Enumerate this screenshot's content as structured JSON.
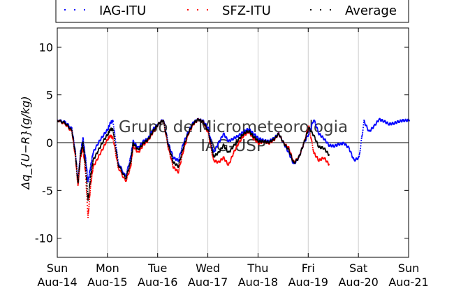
{
  "chart_data": {
    "type": "scatter",
    "ylabel": "Δq_{U−R}(g/kg)",
    "ylim": [
      -12,
      12
    ],
    "yticks": [
      10,
      5,
      0,
      -5,
      -10
    ],
    "xlim": [
      0,
      7
    ],
    "xticks": [
      {
        "day": "Sun",
        "date": "Aug-14",
        "x": 0
      },
      {
        "day": "Mon",
        "date": "Aug-15",
        "x": 1
      },
      {
        "day": "Tue",
        "date": "Aug-16",
        "x": 2
      },
      {
        "day": "Wed",
        "date": "Aug-17",
        "x": 3
      },
      {
        "day": "Thu",
        "date": "Aug-18",
        "x": 4
      },
      {
        "day": "Fri",
        "date": "Aug-19",
        "x": 5
      },
      {
        "day": "Sat",
        "date": "Aug-20",
        "x": 6
      },
      {
        "day": "Sun",
        "date": "Aug-21",
        "x": 7
      }
    ],
    "grid": "vertical",
    "zero_line": true,
    "legend_placement": "top",
    "watermark": [
      "Grupo de Micrometeorologia",
      "IAG-USP"
    ],
    "series": [
      {
        "name": "IAG-ITU",
        "color": "#0000ff",
        "x": [
          0.0,
          0.15,
          0.28,
          0.35,
          0.4,
          0.45,
          0.5,
          0.55,
          0.6,
          0.65,
          0.7,
          0.8,
          0.9,
          1.0,
          1.05,
          1.1,
          1.2,
          1.35,
          1.45,
          1.5,
          1.6,
          1.7,
          1.8,
          1.9,
          2.0,
          2.1,
          2.2,
          2.3,
          2.4,
          2.5,
          2.6,
          2.7,
          2.8,
          2.9,
          3.0,
          3.1,
          3.2,
          3.3,
          3.4,
          3.5,
          3.6,
          3.7,
          3.8,
          3.9,
          4.0,
          4.1,
          4.2,
          4.3,
          4.4,
          4.5,
          4.6,
          4.7,
          4.8,
          4.9,
          5.0,
          5.1,
          5.2,
          5.3,
          5.4,
          5.5,
          5.6,
          5.7,
          5.8,
          5.9,
          6.0,
          6.1,
          6.2,
          6.3,
          6.4,
          6.5,
          6.6,
          6.7,
          6.8,
          6.9,
          7.0
        ],
        "y": [
          2.4,
          2.2,
          1.5,
          -1.0,
          -4.0,
          -1.0,
          0.5,
          -1.5,
          -4.0,
          -2.5,
          -1.0,
          0.0,
          0.8,
          1.5,
          2.2,
          2.3,
          -2.0,
          -3.5,
          -1.5,
          0.2,
          -0.5,
          0.2,
          0.5,
          1.5,
          2.0,
          2.5,
          0.0,
          -1.5,
          -1.8,
          0.0,
          1.2,
          2.2,
          2.5,
          2.3,
          1.5,
          -1.0,
          0.0,
          1.0,
          0.2,
          0.5,
          0.8,
          1.2,
          1.5,
          1.0,
          0.5,
          0.3,
          0.2,
          0.5,
          1.0,
          0.0,
          -1.0,
          -2.2,
          -1.5,
          0.0,
          1.0,
          2.5,
          1.0,
          0.5,
          -0.2,
          -0.3,
          -0.1,
          0.0,
          -0.5,
          -1.8,
          -1.5,
          2.3,
          1.2,
          1.8,
          2.5,
          2.3,
          2.0,
          2.1,
          2.3,
          2.4,
          2.4
        ]
      },
      {
        "name": "SFZ-ITU",
        "color": "#ff0000",
        "x": [
          0.0,
          0.15,
          0.28,
          0.35,
          0.4,
          0.45,
          0.5,
          0.55,
          0.6,
          0.65,
          0.7,
          0.8,
          0.9,
          1.0,
          1.05,
          1.1,
          1.2,
          1.35,
          1.45,
          1.5,
          1.6,
          1.7,
          1.8,
          1.9,
          2.0,
          2.1,
          2.2,
          2.3,
          2.4,
          2.5,
          2.6,
          2.7,
          2.8,
          2.9,
          3.0,
          3.1,
          3.2,
          3.3,
          3.4,
          3.5,
          3.6,
          3.7,
          3.8,
          3.9,
          4.0,
          4.1,
          4.2,
          4.3,
          4.4,
          4.5,
          4.6,
          4.7,
          4.8,
          4.9,
          5.0,
          5.1,
          5.2,
          5.3,
          5.4
        ],
        "y": [
          2.4,
          2.0,
          1.2,
          -1.5,
          -4.5,
          -1.5,
          -0.5,
          -3.0,
          -7.8,
          -4.5,
          -2.5,
          -1.5,
          -0.5,
          0.5,
          0.8,
          0.5,
          -2.5,
          -4.0,
          -2.5,
          -0.3,
          -1.0,
          -0.2,
          0.3,
          1.2,
          2.0,
          2.4,
          -0.5,
          -2.5,
          -3.0,
          -0.8,
          1.0,
          2.0,
          2.5,
          2.2,
          1.0,
          -1.8,
          -2.0,
          -1.5,
          -2.3,
          -1.0,
          0.0,
          0.8,
          1.2,
          0.5,
          0.0,
          0.2,
          0.0,
          0.3,
          1.0,
          0.0,
          -0.5,
          -2.0,
          -1.5,
          0.0,
          1.8,
          -1.0,
          -1.8,
          -1.5,
          -2.2
        ]
      },
      {
        "name": "Average",
        "color": "#000000",
        "x": [
          0.0,
          0.15,
          0.28,
          0.35,
          0.4,
          0.45,
          0.5,
          0.55,
          0.6,
          0.65,
          0.7,
          0.8,
          0.9,
          1.0,
          1.05,
          1.1,
          1.2,
          1.35,
          1.45,
          1.5,
          1.6,
          1.7,
          1.8,
          1.9,
          2.0,
          2.1,
          2.2,
          2.3,
          2.4,
          2.5,
          2.6,
          2.7,
          2.8,
          2.9,
          3.0,
          3.1,
          3.2,
          3.3,
          3.4,
          3.5,
          3.6,
          3.7,
          3.8,
          3.9,
          4.0,
          4.1,
          4.2,
          4.3,
          4.4,
          4.5,
          4.6,
          4.7,
          4.8,
          4.9,
          5.0,
          5.1,
          5.2,
          5.3,
          5.4
        ],
        "y": [
          2.4,
          2.1,
          1.3,
          -1.2,
          -4.2,
          -1.2,
          0.0,
          -2.2,
          -6.0,
          -3.5,
          -1.8,
          -0.8,
          0.2,
          1.0,
          1.5,
          1.4,
          -2.2,
          -3.7,
          -2.0,
          0.0,
          -0.7,
          0.0,
          0.4,
          1.3,
          2.0,
          2.4,
          -0.2,
          -2.0,
          -2.4,
          -0.4,
          1.1,
          2.1,
          2.5,
          2.2,
          1.2,
          -1.4,
          -1.0,
          -0.2,
          -1.0,
          -0.3,
          0.4,
          1.0,
          1.3,
          0.7,
          0.2,
          0.2,
          0.1,
          0.4,
          1.0,
          0.0,
          -0.7,
          -2.1,
          -1.5,
          0.0,
          1.6,
          0.8,
          -0.4,
          -0.5,
          -1.2
        ]
      }
    ]
  }
}
